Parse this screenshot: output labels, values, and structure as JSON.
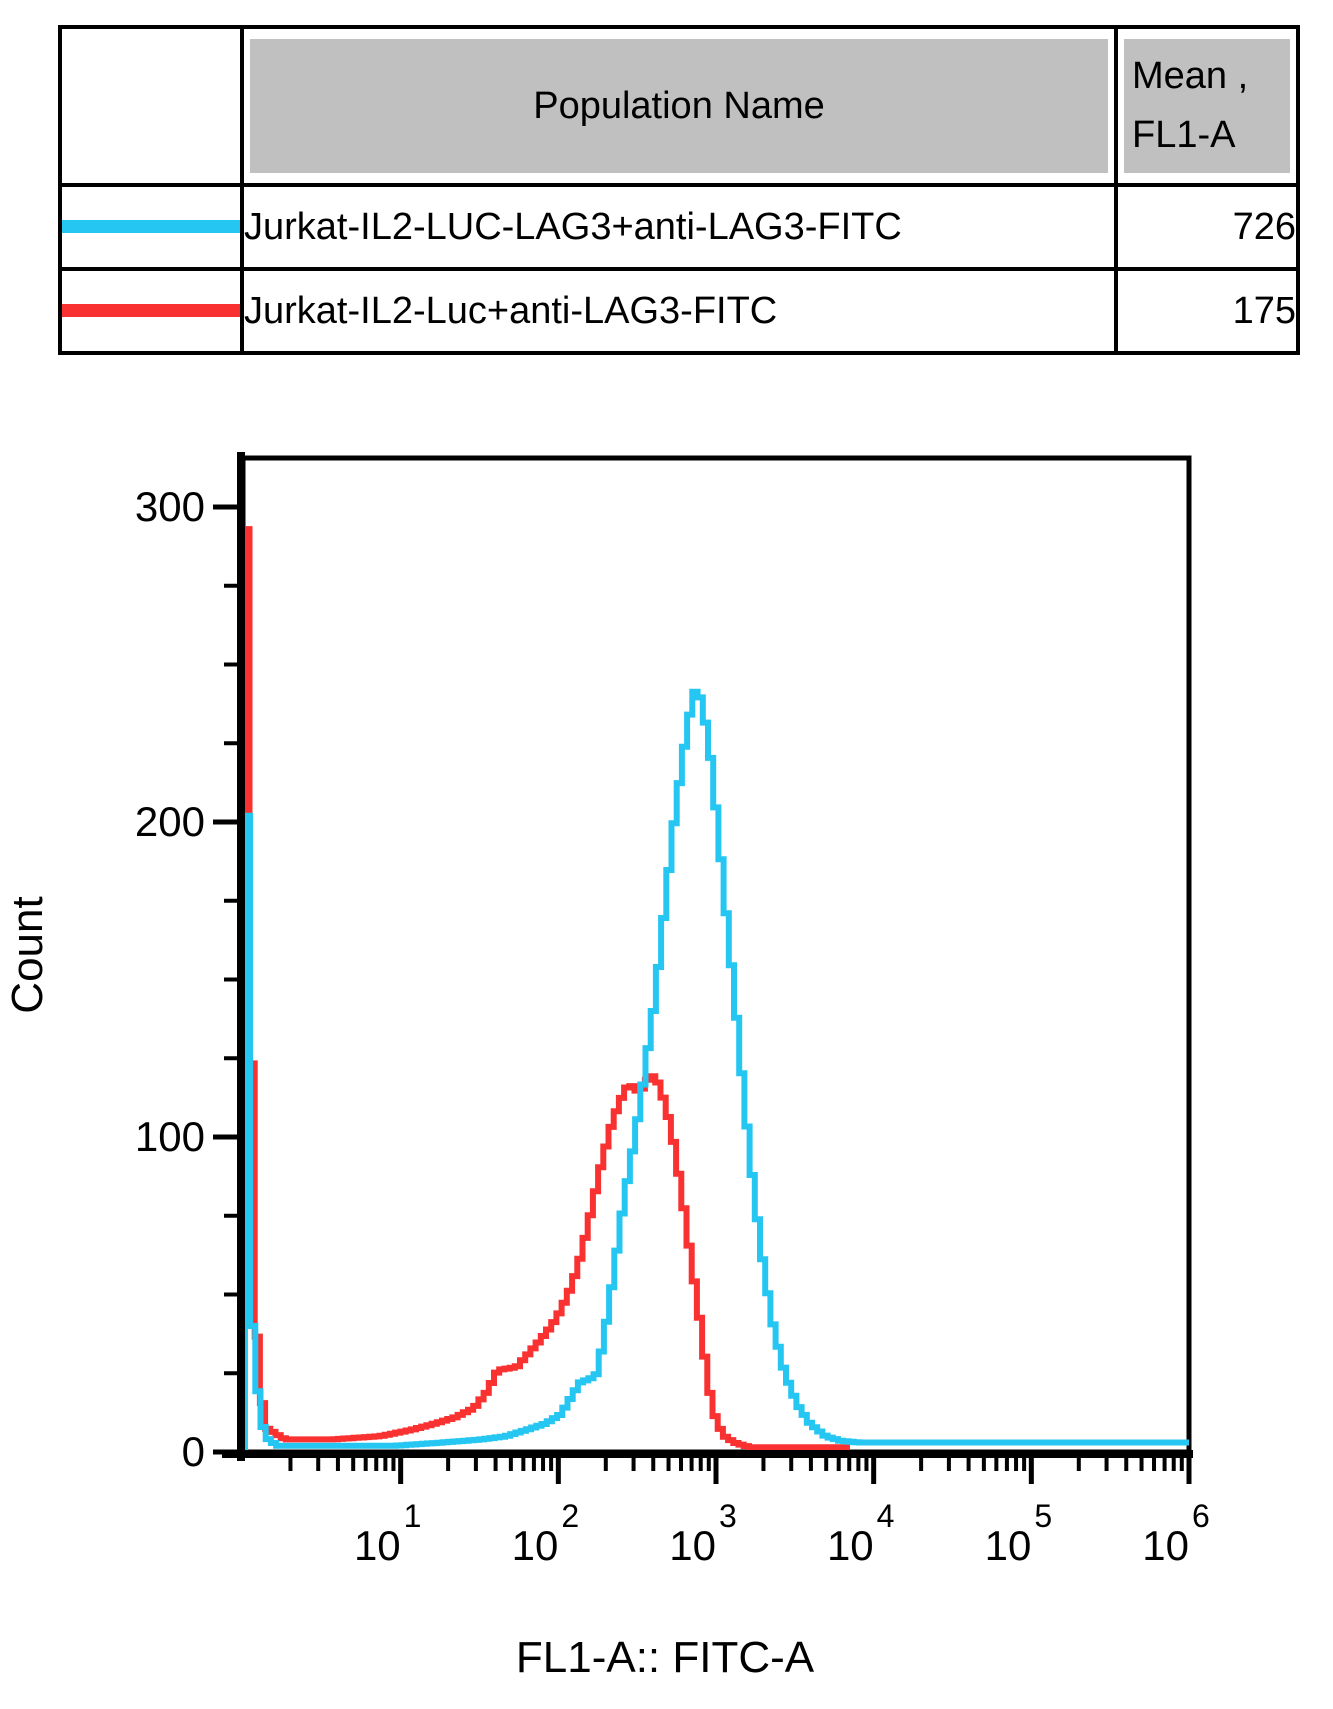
{
  "legend_table": {
    "header": {
      "population": "Population Name",
      "mean_line1": "Mean ,",
      "mean_line2": "FL1-A"
    },
    "rows": [
      {
        "swatch_color": "#25C7F2",
        "population": "Jurkat-IL2-LUC-LAG3+anti-LAG3-FITC",
        "mean": "726"
      },
      {
        "swatch_color": "#FA3131",
        "population": "Jurkat-IL2-Luc+anti-LAG3-FITC",
        "mean": "175"
      }
    ]
  },
  "chart_data": {
    "type": "line",
    "subtype": "step-histogram-overlay",
    "title": "",
    "xlabel": "FL1-A:: FITC-A",
    "ylabel": "Count",
    "x_scale": "log10",
    "x_range_exponents": [
      0,
      6
    ],
    "x_major_tick_exponents": [
      1,
      2,
      3,
      4,
      5,
      6
    ],
    "x_tick_label_base": "10",
    "ylim": [
      0,
      312
    ],
    "y_major_ticks": [
      0,
      100,
      200,
      300
    ],
    "y_minor_tick_step": 25,
    "grid": false,
    "legend_position": "table-above",
    "series": [
      {
        "name": "Jurkat-IL2-Luc+anti-LAG3-FITC",
        "color": "#FA3131",
        "mean_fl1a": 175,
        "points_log10x_count": [
          [
            0.008,
            293
          ],
          [
            0.04,
            126
          ],
          [
            0.075,
            34
          ],
          [
            0.12,
            8
          ],
          [
            0.25,
            4
          ],
          [
            0.55,
            4
          ],
          [
            0.85,
            5
          ],
          [
            1.05,
            7
          ],
          [
            1.2,
            9
          ],
          [
            1.33,
            11
          ],
          [
            1.45,
            14
          ],
          [
            1.53,
            19
          ],
          [
            1.6,
            26
          ],
          [
            1.72,
            27
          ],
          [
            1.79,
            31
          ],
          [
            1.86,
            35
          ],
          [
            1.94,
            40
          ],
          [
            2.0,
            45
          ],
          [
            2.07,
            53
          ],
          [
            2.13,
            63
          ],
          [
            2.19,
            76
          ],
          [
            2.25,
            90
          ],
          [
            2.31,
            102
          ],
          [
            2.37,
            111
          ],
          [
            2.43,
            117
          ],
          [
            2.5,
            114
          ],
          [
            2.57,
            120
          ],
          [
            2.62,
            117
          ],
          [
            2.67,
            109
          ],
          [
            2.72,
            97
          ],
          [
            2.77,
            81
          ],
          [
            2.82,
            63
          ],
          [
            2.87,
            46
          ],
          [
            2.91,
            31
          ],
          [
            2.95,
            17
          ],
          [
            2.99,
            9
          ],
          [
            3.04,
            5
          ],
          [
            3.1,
            3
          ],
          [
            3.2,
            1.5
          ],
          [
            3.85,
            1.5
          ]
        ]
      },
      {
        "name": "Jurkat-IL2-LUC-LAG3+anti-LAG3-FITC",
        "color": "#25C7F2",
        "mean_fl1a": 726,
        "points_log10x_count": [
          [
            0.012,
            202
          ],
          [
            0.045,
            40
          ],
          [
            0.08,
            18
          ],
          [
            0.12,
            5
          ],
          [
            0.2,
            2
          ],
          [
            0.95,
            2
          ],
          [
            1.25,
            3
          ],
          [
            1.5,
            4
          ],
          [
            1.65,
            5
          ],
          [
            1.78,
            7
          ],
          [
            1.9,
            9
          ],
          [
            2.0,
            12
          ],
          [
            2.06,
            17
          ],
          [
            2.12,
            22
          ],
          [
            2.22,
            24
          ],
          [
            2.27,
            35
          ],
          [
            2.33,
            55
          ],
          [
            2.4,
            80
          ],
          [
            2.47,
            100
          ],
          [
            2.53,
            120
          ],
          [
            2.6,
            145
          ],
          [
            2.67,
            178
          ],
          [
            2.73,
            205
          ],
          [
            2.79,
            226
          ],
          [
            2.83,
            238
          ],
          [
            2.86,
            243
          ],
          [
            2.9,
            237
          ],
          [
            2.95,
            220
          ],
          [
            3.0,
            196
          ],
          [
            3.05,
            170
          ],
          [
            3.11,
            140
          ],
          [
            3.17,
            108
          ],
          [
            3.23,
            80
          ],
          [
            3.29,
            57
          ],
          [
            3.35,
            39
          ],
          [
            3.42,
            25
          ],
          [
            3.5,
            15
          ],
          [
            3.58,
            9
          ],
          [
            3.68,
            5
          ],
          [
            3.78,
            3.5
          ],
          [
            3.9,
            3
          ],
          [
            6.0,
            3
          ]
        ]
      }
    ]
  }
}
